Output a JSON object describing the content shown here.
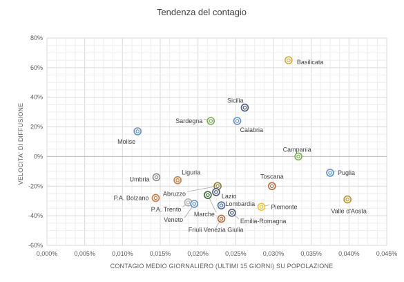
{
  "chart_data": {
    "type": "scatter",
    "title": "Tendenza del contagio",
    "xlabel": "CONTAGIO MEDIO GIORNALIERO (ULTIMI 15 GIORNI) SU POPOLAZIONE",
    "ylabel": "VELOCITA' DI DIFFUSIONE",
    "xlim": [
      0,
      0.045
    ],
    "ylim": [
      -60,
      80
    ],
    "x_ticks": [
      "0,000%",
      "0,005%",
      "0,010%",
      "0,015%",
      "0,020%",
      "0,025%",
      "0,030%",
      "0,035%",
      "0,040%",
      "0,045%"
    ],
    "y_ticks": [
      "-60%",
      "-40%",
      "-20%",
      "0%",
      "20%",
      "40%",
      "60%",
      "80%"
    ],
    "grid": true,
    "points": [
      {
        "label": "Basilicata",
        "x": 0.032,
        "y": 65,
        "color": "#d4a93a"
      },
      {
        "label": "Sicilia",
        "x": 0.0262,
        "y": 33,
        "color": "#4a5a78"
      },
      {
        "label": "Sardegna",
        "x": 0.0217,
        "y": 24,
        "color": "#78ac4a"
      },
      {
        "label": "Calabria",
        "x": 0.0252,
        "y": 24,
        "color": "#5b8fd0"
      },
      {
        "label": "Molise",
        "x": 0.012,
        "y": 17,
        "color": "#5b8fd0"
      },
      {
        "label": "Campania",
        "x": 0.0333,
        "y": 0,
        "color": "#78ac4a"
      },
      {
        "label": "Puglia",
        "x": 0.0375,
        "y": -11,
        "color": "#5b8fd0"
      },
      {
        "label": "Umbria",
        "x": 0.0145,
        "y": -14,
        "color": "#8c8c8c"
      },
      {
        "label": "Liguria",
        "x": 0.0173,
        "y": -16,
        "color": "#d0783a"
      },
      {
        "label": "Toscana",
        "x": 0.0298,
        "y": -20,
        "color": "#b8683a"
      },
      {
        "label": "Abruzzo",
        "x": 0.0226,
        "y": -20,
        "color": "#8a7a28"
      },
      {
        "label": "Lazio",
        "x": 0.0224,
        "y": -24,
        "color": "#4a5a78"
      },
      {
        "label": "P.A. Bolzano",
        "x": 0.0144,
        "y": -28,
        "color": "#d0783a"
      },
      {
        "label": "Marche",
        "x": 0.0213,
        "y": -26,
        "color": "#3a6a3a"
      },
      {
        "label": "Valle d'Aosta",
        "x": 0.0398,
        "y": -29,
        "color": "#b8902a"
      },
      {
        "label": "P.A. Trento",
        "x": 0.0187,
        "y": -31,
        "color": "#b0b0b0"
      },
      {
        "label": "Veneto",
        "x": 0.0195,
        "y": -32,
        "color": "#5b8fd0"
      },
      {
        "label": "Lombardia",
        "x": 0.0231,
        "y": -33,
        "color": "#4a6aa0"
      },
      {
        "label": "Piemonte",
        "x": 0.0284,
        "y": -34,
        "color": "#f0c030"
      },
      {
        "label": "Emilia-Romagna",
        "x": 0.0245,
        "y": -38,
        "color": "#4a5a78"
      },
      {
        "label": "Friuli Venezia Giulia",
        "x": 0.0231,
        "y": -42,
        "color": "#b8683a"
      }
    ]
  }
}
